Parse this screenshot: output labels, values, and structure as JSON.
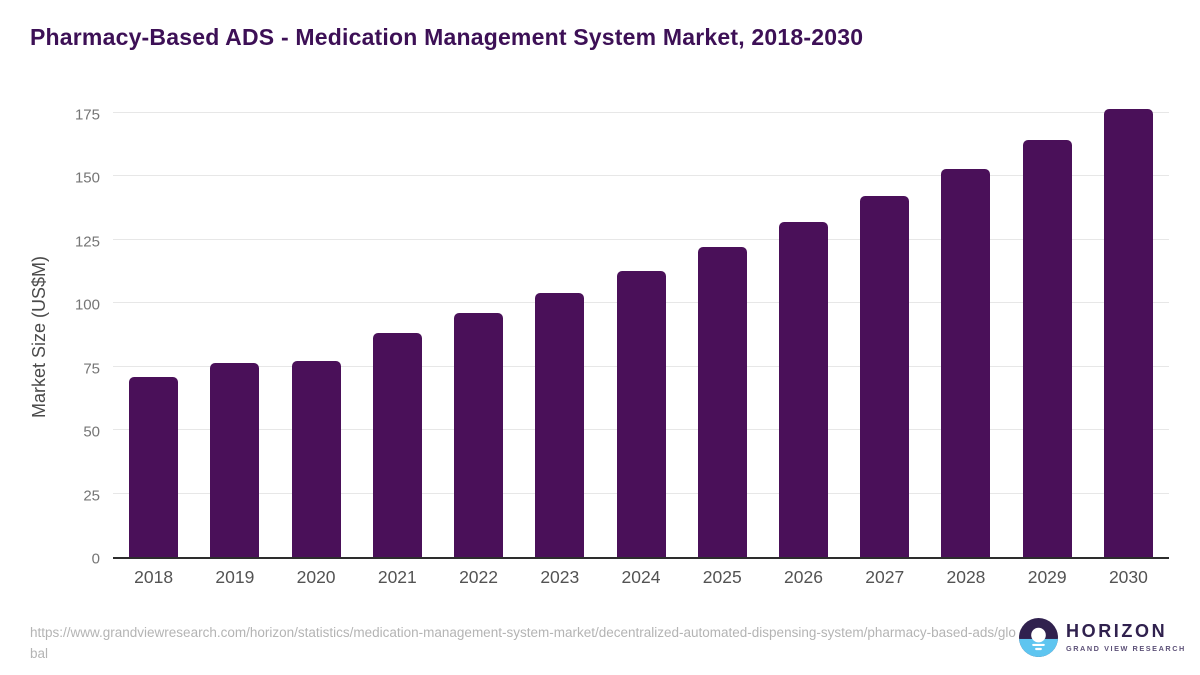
{
  "chart_data": {
    "type": "bar",
    "title": "Pharmacy-Based ADS - Medication Management System Market, 2018-2030",
    "ylabel": "Market Size (US$M)",
    "xlabel": "",
    "categories": [
      "2018",
      "2019",
      "2020",
      "2021",
      "2022",
      "2023",
      "2024",
      "2025",
      "2026",
      "2027",
      "2028",
      "2029",
      "2030"
    ],
    "values": [
      71.0,
      76.5,
      77.4,
      88.3,
      96.0,
      104.2,
      112.9,
      122.2,
      132.0,
      142.2,
      153.0,
      164.3,
      176.6
    ],
    "yticks": [
      0,
      25,
      50,
      75,
      100,
      125,
      150,
      175
    ],
    "ylim": [
      0,
      175
    ],
    "grid": true,
    "legend": "none",
    "bar_color": "#4a1059",
    "gridline_color": "#e7e7e7",
    "title_color": "#3d1056"
  },
  "footer": {
    "url": "https://www.grandviewresearch.com/horizon/statistics/medication-management-system-market/decentralized-automated-dispensing-system/pharmacy-based-ads/global",
    "logo": {
      "name": "HORIZON",
      "subtitle": "GRAND VIEW RESEARCH",
      "purple": "#30214e",
      "blue": "#5ec5f0"
    }
  }
}
